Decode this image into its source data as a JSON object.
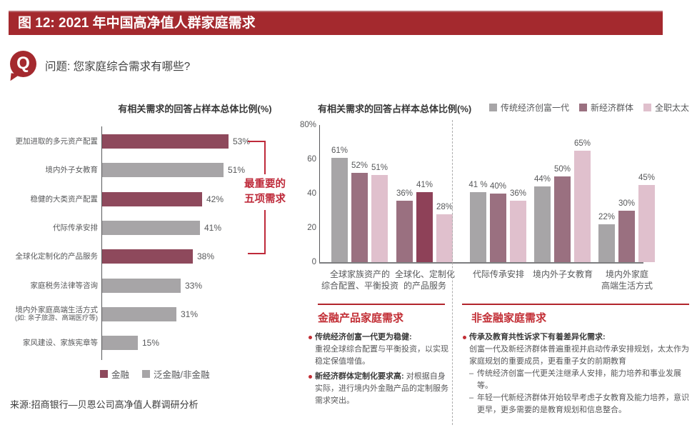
{
  "figure": {
    "title": "图 12: 2021 年中国高净值人群家庭需求"
  },
  "question": {
    "icon_letter": "Q",
    "text": "问题: 您家庭综合需求有哪些?"
  },
  "palette": {
    "banner_red": "#A4292E",
    "accent_red": "#BE2A3A",
    "section_title_red": "#C22E35",
    "finance_wine": "#8E495C",
    "highlight_wine": "#8E4158",
    "gray_bar": "#A7A5A7",
    "mauve_bar": "#9A7080",
    "pink_bar": "#E0C0CD",
    "text_dark": "#3A3A3A",
    "text_gray": "#57585A"
  },
  "chart_data": [
    {
      "type": "bar",
      "orientation": "horizontal",
      "title": "有相关需求的回答占样本总体比例(%)",
      "unit": "%",
      "legend_position": "bottom",
      "value_axis_visible": false,
      "legend": [
        {
          "label": "金融",
          "color": "#8E495C"
        },
        {
          "label": "泛金融/非金融",
          "color": "#A7A5A7"
        }
      ],
      "bars": [
        {
          "label": "更加进取的多元资产配置",
          "value": 53,
          "display": "53%",
          "series": "金融"
        },
        {
          "label": "境内外子女教育",
          "value": 51,
          "display": "51%",
          "series": "泛金融/非金融"
        },
        {
          "label": "稳健的大类资产配置",
          "value": 42,
          "display": "42%",
          "series": "金融"
        },
        {
          "label": "代际传承安排",
          "value": 41,
          "display": "41%",
          "series": "泛金融/非金融"
        },
        {
          "label": "全球化定制化的产品服务",
          "value": 38,
          "display": "38%",
          "series": "金融"
        },
        {
          "label": "家庭税务法律等咨询",
          "value": 33,
          "display": "33%",
          "series": "泛金融/非金融"
        },
        {
          "label": "境内外家庭高端生活方式",
          "label2": "(如: 亲子旅游、高端医疗等)",
          "value": 31,
          "display": "31%",
          "series": "泛金融/非金融"
        },
        {
          "label": "家风建设、家族宪章等",
          "value": 15,
          "display": "15%",
          "series": "泛金融/非金融"
        }
      ],
      "annotation": {
        "line1": "最重要的",
        "line2": "五项需求",
        "covers": "top 5 bars"
      }
    },
    {
      "type": "bar",
      "orientation": "vertical",
      "title": "有相关需求的回答占样本总体比例(%)",
      "unit": "%",
      "ylim": [
        0,
        80
      ],
      "legend_position": "top-right",
      "legend": [
        {
          "label": "传统经济创富一代",
          "color": "#A7A5A7"
        },
        {
          "label": "新经济群体",
          "color": "#9A7080"
        },
        {
          "label": "全职太太",
          "color": "#E0C0CD"
        }
      ],
      "yticks": [
        {
          "label": "80%",
          "value": 80
        },
        {
          "label": "60",
          "value": 60
        },
        {
          "label": "40",
          "value": 40
        },
        {
          "label": "20",
          "value": 20
        },
        {
          "label": "0",
          "value": 0
        }
      ],
      "divider_after_group": 2,
      "groups": [
        {
          "label_lines": [
            "全球家族资产的",
            "综合配置、平衡投资"
          ],
          "bars": [
            {
              "series": "传统经济创富一代",
              "value": 61,
              "display": "61%",
              "color": "#A7A5A7"
            },
            {
              "series": "新经济群体",
              "value": 52,
              "display": "52%",
              "color": "#9A7080"
            },
            {
              "series": "全职太太",
              "value": 51,
              "display": "51%",
              "color": "#E0C0CD"
            }
          ]
        },
        {
          "label_lines": [
            "全球化、定制化",
            "的产品服务"
          ],
          "bars": [
            {
              "series": "传统经济创富一代",
              "value": 36,
              "display": "36%",
              "color": "#9A7080"
            },
            {
              "series": "新经济群体",
              "value": 41,
              "display": "41%",
              "color": "#8E4158"
            },
            {
              "series": "全职太太",
              "value": 28,
              "display": "28%",
              "color": "#E0C0CD"
            }
          ]
        },
        {
          "label_lines": [
            "代际传承安排"
          ],
          "bars": [
            {
              "series": "传统经济创富一代",
              "value": 41,
              "display": "41 %",
              "color": "#A7A5A7"
            },
            {
              "series": "新经济群体",
              "value": 40,
              "display": "40%",
              "color": "#9A7080"
            },
            {
              "series": "全职太太",
              "value": 36,
              "display": "36%",
              "color": "#E0C0CD"
            }
          ]
        },
        {
          "label_lines": [
            "境内外子女教育"
          ],
          "bars": [
            {
              "series": "传统经济创富一代",
              "value": 44,
              "display": "44%",
              "color": "#A7A5A7"
            },
            {
              "series": "新经济群体",
              "value": 50,
              "display": "50%",
              "color": "#9A7080"
            },
            {
              "series": "全职太太",
              "value": 65,
              "display": "65%",
              "color": "#E0C0CD"
            }
          ]
        },
        {
          "label_lines": [
            "境内外家庭",
            "高端生活方式"
          ],
          "bars": [
            {
              "series": "传统经济创富一代",
              "value": 22,
              "display": "22%",
              "color": "#A7A5A7"
            },
            {
              "series": "新经济群体",
              "value": 30,
              "display": "30%",
              "color": "#9A7080"
            },
            {
              "series": "全职太太",
              "value": 45,
              "display": "45%",
              "color": "#E0C0CD"
            }
          ]
        }
      ]
    }
  ],
  "notes": {
    "finance": {
      "title": "金融产品家庭需求",
      "bullets": [
        {
          "lead": "传统经济创富一代更为稳健:",
          "text": "重视全球综合配置与平衡投资，以实现稳定保值增值。"
        },
        {
          "lead": "新经济群体定制化要求高:",
          "text": "对根据自身实际，进行境内外金融产品的定制服务需求突出。"
        }
      ]
    },
    "nonfinance": {
      "title": "非金融家庭需求",
      "bullets": [
        {
          "lead": "传承及教育共性诉求下有着差异化需求:",
          "text": "创富一代及新经济群体普遍重视并启动传承安排规划，太太作为家庭规划的重要成员，更看重子女的前期教育",
          "subitems": [
            "传统经济创富一代更关注继承人安排，能力培养和事业发展等。",
            "年轻一代新经济群体开始较早考虑子女教育及能力培养，意识更早，更多需要的是教育规划和信息整合。"
          ]
        }
      ]
    }
  },
  "source": "来源:招商银行—贝恩公司高净值人群调研分析"
}
